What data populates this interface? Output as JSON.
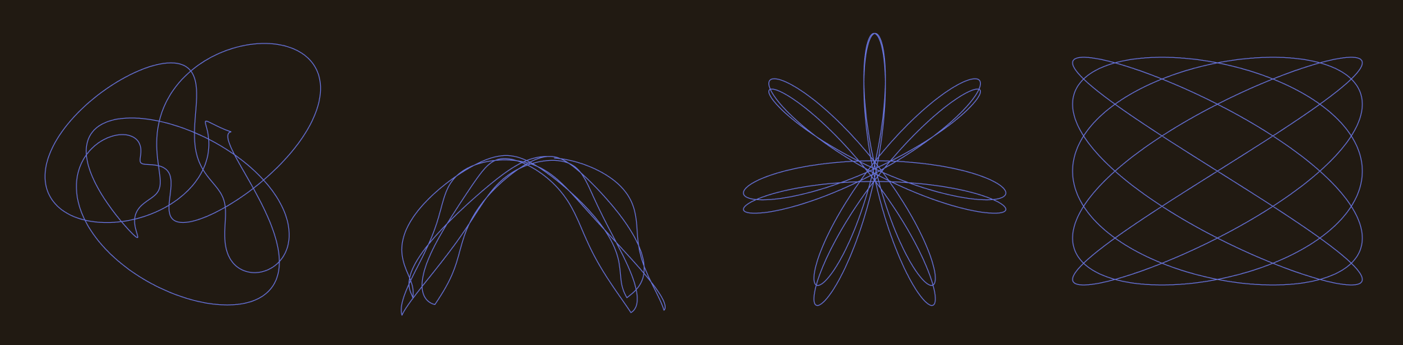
{
  "canvas": {
    "background": "#211a12",
    "stroke_color": "#6672d9"
  },
  "figures": [
    {
      "name": "tangled-loop-figure",
      "shape": "random-wandering-closed-curve",
      "description_icon": "scribble-icon"
    },
    {
      "name": "u-shaped-loop-figure",
      "shape": "u-shaped-multi-loop-curve",
      "description_icon": "scribble-icon"
    },
    {
      "name": "starburst-figure",
      "shape": "radial-rose-like-curve",
      "description_icon": "starburst-icon"
    },
    {
      "name": "lissajous-figure",
      "shape": "lissajous-curve",
      "description_icon": "orbit-icon"
    }
  ]
}
